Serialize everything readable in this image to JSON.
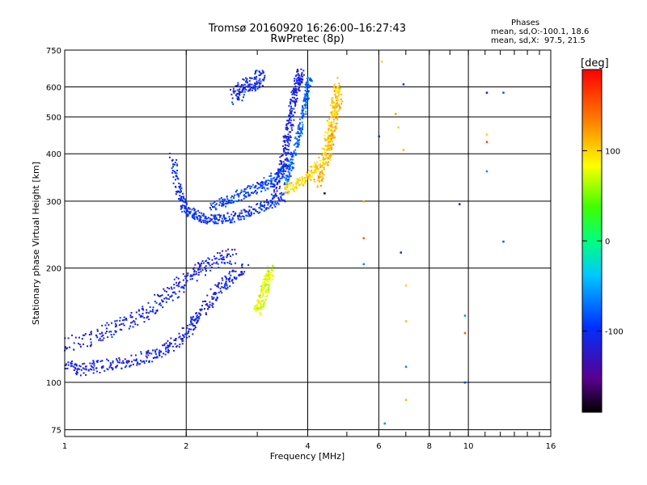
{
  "header": {
    "title_line1": "Tromsø 20160920 16:26:00–16:27:43",
    "title_line2": "RwPretec (8p)"
  },
  "legend_text": {
    "heading": "Phases",
    "line1": "mean, sd,O:-100.1, 18.6",
    "line2": "mean, sd,X:  97.5, 21.5"
  },
  "colorbar": {
    "unit_label": "[deg]",
    "ticks": [
      {
        "value": 100,
        "label": "100"
      },
      {
        "value": 0,
        "label": "0"
      },
      {
        "value": -100,
        "label": "-100"
      }
    ],
    "range": [
      -190,
      190
    ]
  },
  "chart_data": {
    "type": "scatter",
    "xlabel": "Frequency [MHz]",
    "ylabel": "Stationary phase Virtual Height [km]",
    "x_scale": "log",
    "y_scale": "log",
    "xlim": [
      1,
      16
    ],
    "ylim": [
      72,
      750
    ],
    "x_ticks": [
      {
        "value": 1,
        "label": "1"
      },
      {
        "value": 2,
        "label": "2"
      },
      {
        "value": 4,
        "label": "4"
      },
      {
        "value": 6,
        "label": "6"
      },
      {
        "value": 8,
        "label": "8"
      },
      {
        "value": 10,
        "label": "10"
      },
      {
        "value": 16,
        "label": "16"
      }
    ],
    "y_ticks": [
      {
        "value": 75,
        "label": "75"
      },
      {
        "value": 100,
        "label": "100"
      },
      {
        "value": 200,
        "label": "200"
      },
      {
        "value": 300,
        "label": "300"
      },
      {
        "value": 400,
        "label": "400"
      },
      {
        "value": 500,
        "label": "500"
      },
      {
        "value": 600,
        "label": "600"
      },
      {
        "value": 750,
        "label": "750"
      }
    ],
    "grid": true,
    "traces": [
      {
        "name": "",
        "phase": -110,
        "spread": 0.025,
        "x": [
          1.0,
          1.1,
          1.2,
          1.35,
          1.5,
          1.65,
          1.8,
          1.95,
          2.05,
          2.15,
          2.3,
          2.45,
          2.6,
          2.8
        ],
        "y": [
          110,
          108,
          110,
          112,
          115,
          118,
          123,
          130,
          140,
          150,
          165,
          180,
          190,
          200
        ]
      },
      {
        "name": "",
        "phase": -110,
        "spread": 0.03,
        "x": [
          1.0,
          1.15,
          1.3,
          1.45,
          1.6,
          1.75,
          1.9,
          2.05,
          2.2,
          2.4,
          2.6
        ],
        "y": [
          125,
          130,
          138,
          145,
          155,
          165,
          178,
          190,
          200,
          210,
          215
        ]
      },
      {
        "name": "",
        "phase": -100,
        "spread": 0.02,
        "x": [
          1.85,
          1.9,
          1.95,
          2.0,
          2.1,
          2.2,
          2.35,
          2.5,
          2.7,
          2.9,
          3.1,
          3.3,
          3.5
        ],
        "y": [
          390,
          330,
          300,
          285,
          275,
          270,
          268,
          270,
          275,
          282,
          290,
          300,
          310
        ]
      },
      {
        "name": "",
        "phase": -90,
        "spread": 0.02,
        "x": [
          2.3,
          2.5,
          2.7,
          2.9,
          3.1,
          3.3,
          3.45,
          3.6
        ],
        "y": [
          290,
          300,
          310,
          320,
          330,
          345,
          360,
          380
        ]
      },
      {
        "name": "",
        "phase": -110,
        "spread": 0.02,
        "x": [
          3.3,
          3.4,
          3.5,
          3.55,
          3.6,
          3.65,
          3.7,
          3.75,
          3.8,
          3.85
        ],
        "y": [
          320,
          350,
          390,
          430,
          470,
          520,
          560,
          600,
          630,
          650
        ]
      },
      {
        "name": "",
        "phase": -75,
        "spread": 0.015,
        "x": [
          3.5,
          3.6,
          3.7,
          3.8,
          3.9,
          3.95,
          4.0,
          4.05
        ],
        "y": [
          330,
          360,
          400,
          450,
          500,
          550,
          600,
          630
        ]
      },
      {
        "name": "",
        "phase": 100,
        "spread": 0.02,
        "x": [
          3.5,
          3.7,
          3.9,
          4.1,
          4.3,
          4.45,
          4.55,
          4.65,
          4.7,
          4.75
        ],
        "y": [
          320,
          330,
          340,
          355,
          380,
          420,
          470,
          520,
          570,
          620
        ]
      },
      {
        "name": "",
        "phase": 115,
        "spread": 0.018,
        "x": [
          4.2,
          4.35,
          4.5,
          4.6,
          4.7,
          4.8
        ],
        "y": [
          330,
          360,
          400,
          450,
          500,
          560
        ]
      },
      {
        "name": "",
        "phase": 75,
        "spread": 0.02,
        "x": [
          3.0,
          3.05,
          3.1,
          3.15,
          3.2,
          3.25
        ],
        "y": [
          155,
          160,
          170,
          180,
          190,
          200
        ]
      },
      {
        "name": "",
        "phase": -105,
        "spread": 0.03,
        "x": [
          2.6,
          2.7,
          2.8,
          2.9,
          3.0,
          3.1
        ],
        "y": [
          560,
          580,
          600,
          610,
          625,
          640
        ]
      }
    ],
    "outliers": [
      {
        "x": 5.5,
        "y": 300,
        "phase": 120
      },
      {
        "x": 5.5,
        "y": 240,
        "phase": 150
      },
      {
        "x": 5.5,
        "y": 205,
        "phase": -60
      },
      {
        "x": 6.0,
        "y": 445,
        "phase": -100
      },
      {
        "x": 6.1,
        "y": 700,
        "phase": 100
      },
      {
        "x": 6.2,
        "y": 78,
        "phase": -60
      },
      {
        "x": 6.6,
        "y": 510,
        "phase": 120
      },
      {
        "x": 6.7,
        "y": 470,
        "phase": 100
      },
      {
        "x": 6.8,
        "y": 220,
        "phase": -110
      },
      {
        "x": 6.9,
        "y": 410,
        "phase": 110
      },
      {
        "x": 6.9,
        "y": 610,
        "phase": -100
      },
      {
        "x": 7.0,
        "y": 180,
        "phase": 100
      },
      {
        "x": 7.0,
        "y": 145,
        "phase": 110
      },
      {
        "x": 7.0,
        "y": 110,
        "phase": -60
      },
      {
        "x": 7.0,
        "y": 90,
        "phase": 110
      },
      {
        "x": 9.8,
        "y": 150,
        "phase": -60
      },
      {
        "x": 9.8,
        "y": 135,
        "phase": 150
      },
      {
        "x": 9.8,
        "y": 100,
        "phase": -90
      },
      {
        "x": 11.1,
        "y": 580,
        "phase": -110
      },
      {
        "x": 11.1,
        "y": 450,
        "phase": 100
      },
      {
        "x": 11.1,
        "y": 430,
        "phase": 160
      },
      {
        "x": 11.1,
        "y": 360,
        "phase": -60
      },
      {
        "x": 12.2,
        "y": 580,
        "phase": -80
      },
      {
        "x": 12.2,
        "y": 235,
        "phase": -80
      },
      {
        "x": 4.4,
        "y": 315,
        "phase": -180
      },
      {
        "x": 9.5,
        "y": 295,
        "phase": -140
      }
    ]
  }
}
